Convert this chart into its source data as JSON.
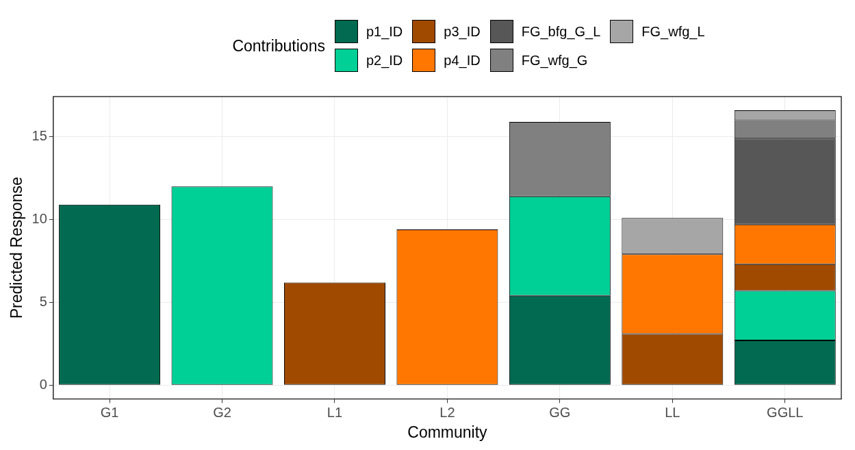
{
  "chart_data": {
    "type": "bar",
    "stacked": true,
    "xlabel": "Community",
    "ylabel": "Predicted Response",
    "legend_title": "Contributions",
    "legend": "top",
    "categories": [
      "G1",
      "G2",
      "L1",
      "L2",
      "GG",
      "LL",
      "GGLL"
    ],
    "series": [
      {
        "name": "p1_ID",
        "color": "#016a50",
        "values": [
          10.9,
          null,
          null,
          null,
          5.4,
          null,
          2.7
        ]
      },
      {
        "name": "p2_ID",
        "color": "#00cf96",
        "values": [
          null,
          12.0,
          null,
          null,
          6.0,
          null,
          3.0
        ]
      },
      {
        "name": "p3_ID",
        "color": "#a04a00",
        "values": [
          null,
          null,
          6.2,
          null,
          null,
          3.1,
          1.6
        ]
      },
      {
        "name": "p4_ID",
        "color": "#ff7700",
        "values": [
          null,
          null,
          null,
          9.4,
          null,
          4.8,
          2.4
        ]
      },
      {
        "name": "FG_bfg_G_L",
        "color": "#575757",
        "values": [
          null,
          null,
          null,
          null,
          null,
          null,
          5.2
        ]
      },
      {
        "name": "FG_wfg_G",
        "color": "#808080",
        "values": [
          null,
          null,
          null,
          null,
          4.5,
          null,
          1.1
        ]
      },
      {
        "name": "FG_wfg_L",
        "color": "#a6a6a6",
        "values": [
          null,
          null,
          null,
          null,
          null,
          2.2,
          0.6
        ]
      }
    ],
    "ylim": [
      -0.83,
      17.43
    ],
    "yticks": [
      0,
      5,
      10,
      15
    ],
    "grid": true
  }
}
